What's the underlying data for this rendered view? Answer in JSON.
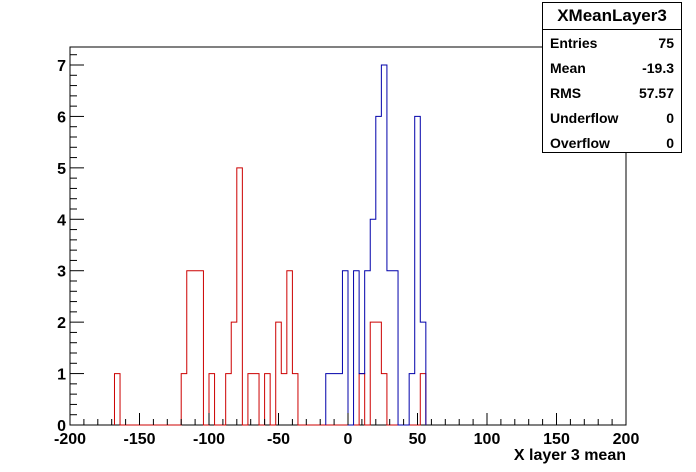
{
  "chart_data": {
    "type": "histogram",
    "xlabel": "X layer 3 mean",
    "xlim": [
      -200,
      200
    ],
    "ylim": [
      0,
      7.35
    ],
    "xticks": [
      -200,
      -150,
      -100,
      -50,
      0,
      50,
      100,
      150,
      200
    ],
    "yticks": [
      0,
      1,
      2,
      3,
      4,
      5,
      6,
      7
    ],
    "bin_width": 4,
    "series": [
      {
        "color": "#cc0000",
        "bins": [
          {
            "x0": -168,
            "x1": -164,
            "y": 1
          },
          {
            "x0": -120,
            "x1": -116,
            "y": 1
          },
          {
            "x0": -116,
            "x1": -104,
            "y": 3
          },
          {
            "x0": -104,
            "x1": -100,
            "y": 0
          },
          {
            "x0": -100,
            "x1": -96,
            "y": 1
          },
          {
            "x0": -88,
            "x1": -84,
            "y": 1
          },
          {
            "x0": -84,
            "x1": -80,
            "y": 2
          },
          {
            "x0": -80,
            "x1": -76,
            "y": 5
          },
          {
            "x0": -72,
            "x1": -64,
            "y": 1
          },
          {
            "x0": -60,
            "x1": -56,
            "y": 1
          },
          {
            "x0": -52,
            "x1": -48,
            "y": 2
          },
          {
            "x0": -48,
            "x1": -44,
            "y": 1
          },
          {
            "x0": -44,
            "x1": -40,
            "y": 3
          },
          {
            "x0": -40,
            "x1": -36,
            "y": 1
          },
          {
            "x0": 8,
            "x1": 12,
            "y": 1
          },
          {
            "x0": 16,
            "x1": 24,
            "y": 2
          },
          {
            "x0": 24,
            "x1": 28,
            "y": 1
          },
          {
            "x0": 52,
            "x1": 56,
            "y": 1
          }
        ]
      },
      {
        "color": "#0000aa",
        "bins": [
          {
            "x0": -16,
            "x1": -4,
            "y": 1
          },
          {
            "x0": -4,
            "x1": 0,
            "y": 3
          },
          {
            "x0": 4,
            "x1": 8,
            "y": 3
          },
          {
            "x0": 8,
            "x1": 12,
            "y": 1
          },
          {
            "x0": 12,
            "x1": 16,
            "y": 3
          },
          {
            "x0": 16,
            "x1": 20,
            "y": 4
          },
          {
            "x0": 20,
            "x1": 24,
            "y": 6
          },
          {
            "x0": 24,
            "x1": 28,
            "y": 7
          },
          {
            "x0": 28,
            "x1": 36,
            "y": 3
          },
          {
            "x0": 44,
            "x1": 48,
            "y": 1
          },
          {
            "x0": 48,
            "x1": 52,
            "y": 6
          },
          {
            "x0": 52,
            "x1": 56,
            "y": 2
          }
        ]
      }
    ]
  },
  "stats": {
    "title": "XMeanLayer3",
    "rows": [
      {
        "label": "Entries",
        "value": "75"
      },
      {
        "label": "Mean",
        "value": "-19.3"
      },
      {
        "label": "RMS",
        "value": "57.57"
      },
      {
        "label": "Underflow",
        "value": "0"
      },
      {
        "label": "Overflow",
        "value": "0"
      }
    ]
  }
}
